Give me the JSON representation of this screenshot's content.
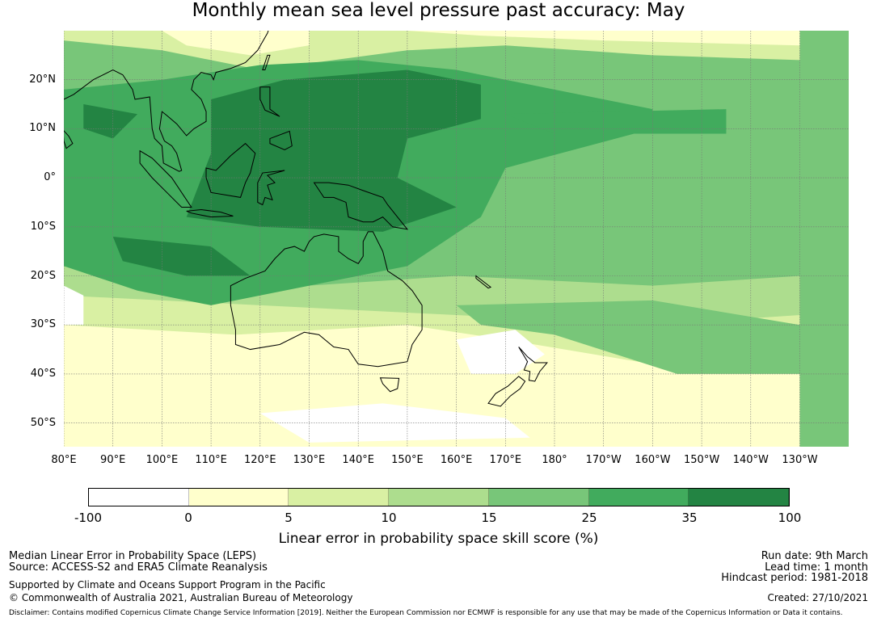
{
  "title": "Monthly mean sea level pressure past accuracy: May",
  "map": {
    "lat_labels": [
      "20°N",
      "10°N",
      "0°",
      "10°S",
      "20°S",
      "30°S",
      "40°S",
      "50°S"
    ],
    "lon_labels": [
      "80°E",
      "90°E",
      "100°E",
      "110°E",
      "120°E",
      "130°E",
      "140°E",
      "150°E",
      "160°E",
      "170°E",
      "180°",
      "170°W",
      "160°W",
      "150°W",
      "140°W",
      "130°W"
    ]
  },
  "colorbar": {
    "ticks": [
      "-100",
      "0",
      "5",
      "10",
      "15",
      "25",
      "35",
      "100"
    ],
    "colors": [
      "#ffffff",
      "#ffffcc",
      "#d9f0a3",
      "#addd8e",
      "#78c679",
      "#41ab5d",
      "#238443"
    ],
    "label": "Linear error in probability space skill score (%)"
  },
  "footer": {
    "line1": "Median Linear Error in Probability Space (LEPS)",
    "line2": "Source: ACCESS-S2 and ERA5 Climate Reanalysis",
    "line3": "Supported by Climate and Oceans Support Program in the Pacific",
    "line4": "© Commonwealth of Australia 2021, Australian Bureau of Meteorology",
    "run_date": "Run date: 9th March",
    "lead_time": "Lead time: 1 month",
    "hindcast": "Hindcast period: 1981-2018",
    "created": "Created: 27/10/2021",
    "disclaimer": "Disclaimer: Contains modified Copernicus Climate Change Service Information [2019]. Neither the European Commission nor ECMWF is responsible for any use that may be made of the Copernicus Information or Data it contains."
  }
}
